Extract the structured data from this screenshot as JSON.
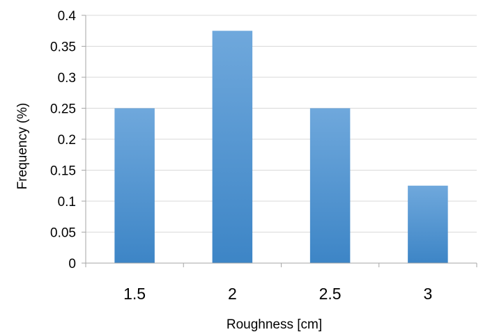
{
  "chart_data": {
    "type": "bar",
    "categories": [
      "1.5",
      "2",
      "2.5",
      "3"
    ],
    "values": [
      0.25,
      0.375,
      0.25,
      0.125
    ],
    "title": "",
    "xlabel": "Roughness [cm]",
    "ylabel": "Frequency (%)",
    "ylim": [
      0,
      0.4
    ],
    "yticks": [
      "0",
      "0.05",
      "0.1",
      "0.15",
      "0.2",
      "0.25",
      "0.3",
      "0.35",
      "0.4"
    ],
    "grid": "horizontal",
    "legend": "none",
    "colors": {
      "bar_top": "#6fa8dc",
      "bar_bottom": "#3d85c6",
      "grid": "#d9d9d9",
      "axis": "#a6a6a6"
    }
  }
}
